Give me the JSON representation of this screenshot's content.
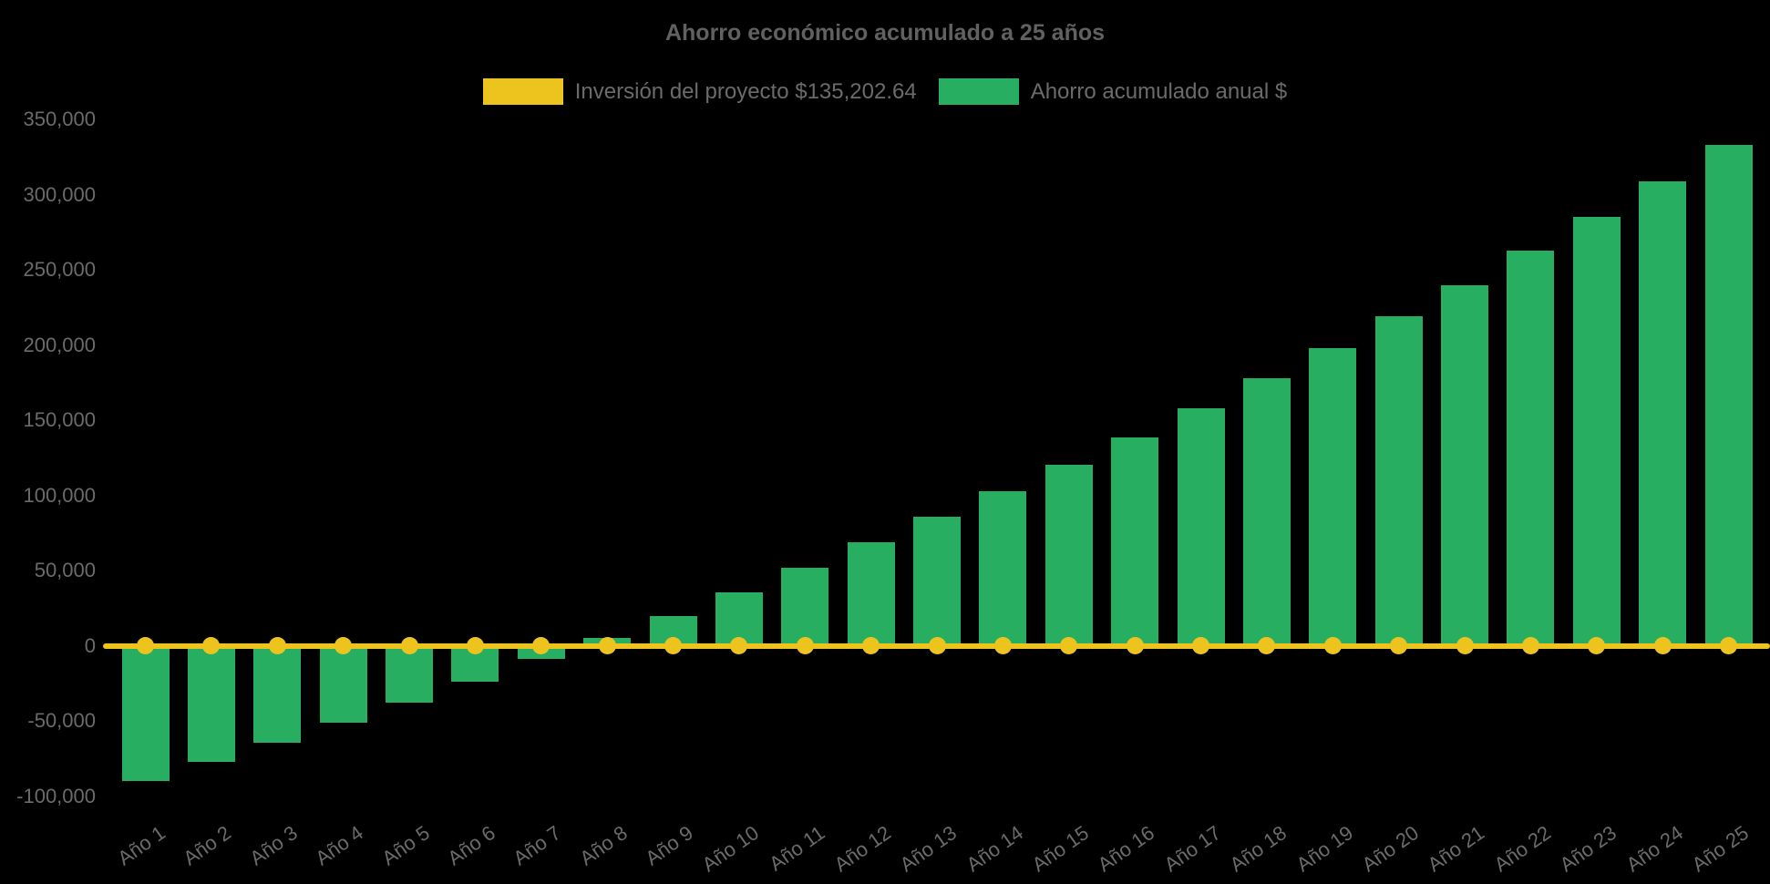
{
  "title": "Ahorro económico acumulado a 25 años",
  "legend": {
    "items": [
      {
        "label": "Inversión del proyecto $135,202.64",
        "color": "#EDC41E",
        "series_type": "line"
      },
      {
        "label": "Ahorro acumulado anual $",
        "color": "#27AE60",
        "series_type": "bar"
      }
    ]
  },
  "colors": {
    "background": "#000000",
    "bar_green": "#27AE60",
    "line_yellow": "#EDC41E",
    "axis_text": "#6b6b6b",
    "title_text": "#616161"
  },
  "chart_data": {
    "type": "bar",
    "title": "Ahorro económico acumulado a 25 años",
    "categories": [
      "Año 1",
      "Año 2",
      "Año 3",
      "Año 4",
      "Año 5",
      "Año 6",
      "Año 7",
      "Año 8",
      "Año 9",
      "Año 10",
      "Año 11",
      "Año 12",
      "Año 13",
      "Año 14",
      "Año 15",
      "Año 16",
      "Año 17",
      "Año 18",
      "Año 19",
      "Año 20",
      "Año 21",
      "Año 22",
      "Año 23",
      "Año 24",
      "Año 25"
    ],
    "series": [
      {
        "name": "Inversión del proyecto $135,202.64",
        "type": "line",
        "color": "#EDC41E",
        "values": [
          0,
          0,
          0,
          0,
          0,
          0,
          0,
          0,
          0,
          0,
          0,
          0,
          0,
          0,
          0,
          0,
          0,
          0,
          0,
          0,
          0,
          0,
          0,
          0,
          0
        ]
      },
      {
        "name": "Ahorro acumulado anual $",
        "type": "bar",
        "color": "#27AE60",
        "values": [
          -90000,
          -77000,
          -64500,
          -51500,
          -38000,
          -24000,
          -9000,
          5000,
          20000,
          35500,
          52000,
          68500,
          85500,
          102500,
          120500,
          138500,
          158000,
          178000,
          198000,
          219000,
          240000,
          262500,
          285000,
          308500,
          333000
        ]
      }
    ],
    "xlabel": "",
    "ylabel": "",
    "ylim": [
      -100000,
      350000
    ],
    "yticks": [
      350000,
      300000,
      250000,
      200000,
      150000,
      100000,
      50000,
      0,
      -50000,
      -100000
    ],
    "ytick_format": "thousands-comma",
    "grid": false,
    "legend_position": "top-center",
    "x_label_rotation_deg": -35
  }
}
